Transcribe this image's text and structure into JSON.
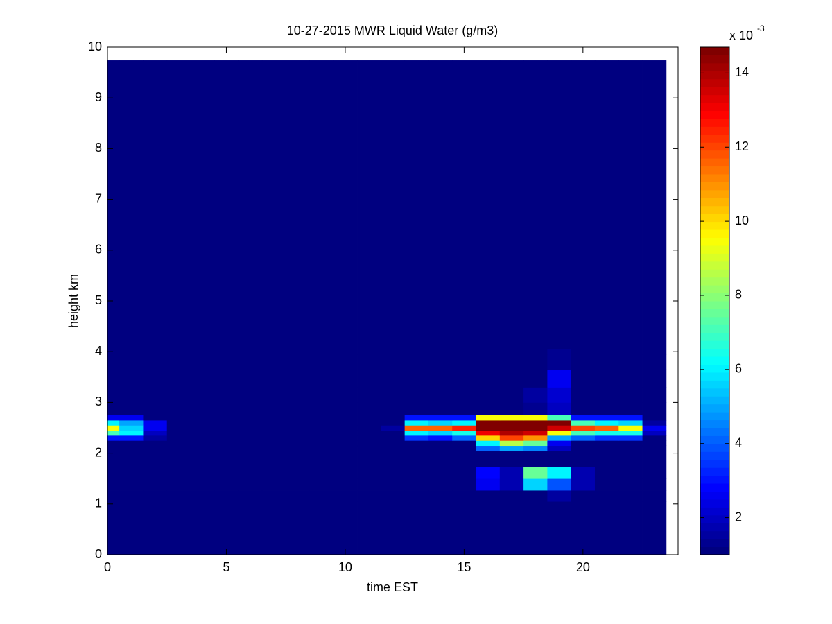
{
  "chart_data": {
    "type": "heatmap",
    "title": "10-27-2015 MWR Liquid Water (g/m3)",
    "xlabel": "time EST",
    "ylabel": "height km",
    "colormap": "jet",
    "xlim": [
      0,
      24
    ],
    "ylim": [
      0,
      10
    ],
    "xticks": [
      0,
      5,
      10,
      15,
      20
    ],
    "yticks": [
      0,
      1,
      2,
      3,
      4,
      5,
      6,
      7,
      8,
      9,
      10
    ],
    "clim": [
      1,
      14.7
    ],
    "cticks": [
      2,
      4,
      6,
      8,
      10,
      12,
      14
    ],
    "colorbar_label_base": "x 10",
    "colorbar_label_exponent": "-3",
    "x_edges": [
      0,
      0.5,
      1.5,
      2.5,
      3.5,
      4.5,
      5.5,
      6.5,
      7.5,
      8.5,
      9.5,
      10.5,
      11.5,
      12.5,
      13.5,
      14.5,
      15.5,
      16.5,
      17.5,
      18.5,
      19.5,
      20.5,
      21.5,
      22.5,
      23.5
    ],
    "y_edges": [
      0,
      1.05,
      1.27,
      1.5,
      1.73,
      2.05,
      2.15,
      2.25,
      2.35,
      2.45,
      2.55,
      2.65,
      2.76,
      3.0,
      3.3,
      3.65,
      3.95,
      4.05,
      9.74
    ],
    "z": [
      [
        1,
        1,
        1,
        1,
        1,
        1,
        1,
        1,
        1,
        1,
        1,
        1,
        1,
        1,
        1,
        1,
        1,
        1,
        1,
        1,
        1,
        1,
        1,
        1
      ],
      [
        1,
        1,
        1,
        1,
        1,
        1,
        1,
        1,
        1,
        1,
        1,
        1,
        1,
        1,
        1,
        1,
        1,
        1,
        1,
        1.5,
        1,
        1,
        1,
        1
      ],
      [
        1,
        1,
        1,
        1,
        1,
        1,
        1,
        1,
        1,
        1,
        1,
        1,
        1,
        1,
        1,
        1,
        2.5,
        1.8,
        5.5,
        3.8,
        1.7,
        1,
        1,
        1
      ],
      [
        1,
        1,
        1,
        1,
        1,
        1,
        1,
        1,
        1,
        1,
        1,
        1,
        1,
        1,
        1,
        1,
        2.8,
        1.8,
        7.5,
        6,
        1.7,
        1,
        1,
        1
      ],
      [
        1,
        1,
        1,
        1,
        1,
        1,
        1,
        1,
        1,
        1,
        1,
        1,
        1,
        1,
        1,
        1,
        1,
        1,
        1,
        1,
        1,
        1,
        1,
        1
      ],
      [
        1,
        1,
        1,
        1,
        1,
        1,
        1,
        1,
        1,
        1,
        1,
        1,
        1,
        1,
        1,
        1,
        4,
        5,
        4.5,
        2,
        1,
        1,
        1,
        1
      ],
      [
        1,
        1,
        1,
        1,
        1,
        1,
        1,
        1,
        1,
        1,
        1,
        1,
        1,
        1,
        1,
        1,
        6,
        8.5,
        7.5,
        2.5,
        1,
        1,
        1,
        1
      ],
      [
        3,
        3,
        1.5,
        1,
        1,
        1,
        1,
        1,
        1,
        1,
        1,
        1,
        1,
        3.5,
        3,
        4,
        10,
        12,
        11,
        5,
        4,
        3.5,
        3.5,
        1
      ],
      [
        7,
        6,
        2,
        1,
        1,
        1,
        1,
        1,
        1,
        1,
        1,
        1,
        1,
        6,
        5.5,
        6.5,
        13,
        14,
        13.5,
        9.5,
        7,
        6.5,
        6.5,
        2
      ],
      [
        9.5,
        5.5,
        2.5,
        1,
        1,
        1,
        1,
        1,
        1,
        1,
        1,
        1,
        1.5,
        11.5,
        11.5,
        12.5,
        14.5,
        14.5,
        14.5,
        13.5,
        12,
        11.5,
        9.5,
        2.5
      ],
      [
        6,
        5,
        2.5,
        1,
        1,
        1,
        1,
        1,
        1,
        1,
        1,
        1,
        1,
        6,
        5.5,
        6,
        14.7,
        14.7,
        14.7,
        14.5,
        7,
        6,
        5.5,
        1.5
      ],
      [
        2.5,
        2.5,
        1,
        1,
        1,
        1,
        1,
        1,
        1,
        1,
        1,
        1,
        1,
        3,
        3,
        3,
        9.5,
        9.5,
        9.5,
        7,
        3,
        3,
        3,
        1
      ],
      [
        1,
        1,
        1,
        1,
        1,
        1,
        1,
        1,
        1,
        1,
        1,
        1,
        1,
        1,
        1,
        1,
        1,
        1,
        1.3,
        2,
        1,
        1,
        1,
        1
      ],
      [
        1,
        1,
        1,
        1,
        1,
        1,
        1,
        1,
        1,
        1,
        1,
        1,
        1,
        1,
        1,
        1,
        1,
        1,
        1.6,
        2.2,
        1,
        1,
        1,
        1
      ],
      [
        1,
        1,
        1,
        1,
        1,
        1,
        1,
        1,
        1,
        1,
        1,
        1,
        1,
        1,
        1,
        1,
        1,
        1,
        1,
        2.5,
        1,
        1,
        1,
        1
      ],
      [
        1,
        1,
        1,
        1,
        1,
        1,
        1,
        1,
        1,
        1,
        1,
        1,
        1,
        1,
        1,
        1,
        1,
        1,
        1,
        1.3,
        1,
        1,
        1,
        1
      ],
      [
        1,
        1,
        1,
        1,
        1,
        1,
        1,
        1,
        1,
        1,
        1,
        1,
        1,
        1,
        1,
        1,
        1,
        1,
        1,
        1.4,
        1,
        1,
        1,
        1
      ],
      [
        1,
        1,
        1,
        1,
        1,
        1,
        1,
        1,
        1,
        1,
        1,
        1,
        1,
        1,
        1,
        1,
        1,
        1,
        1,
        1,
        1,
        1,
        1,
        1
      ]
    ]
  }
}
